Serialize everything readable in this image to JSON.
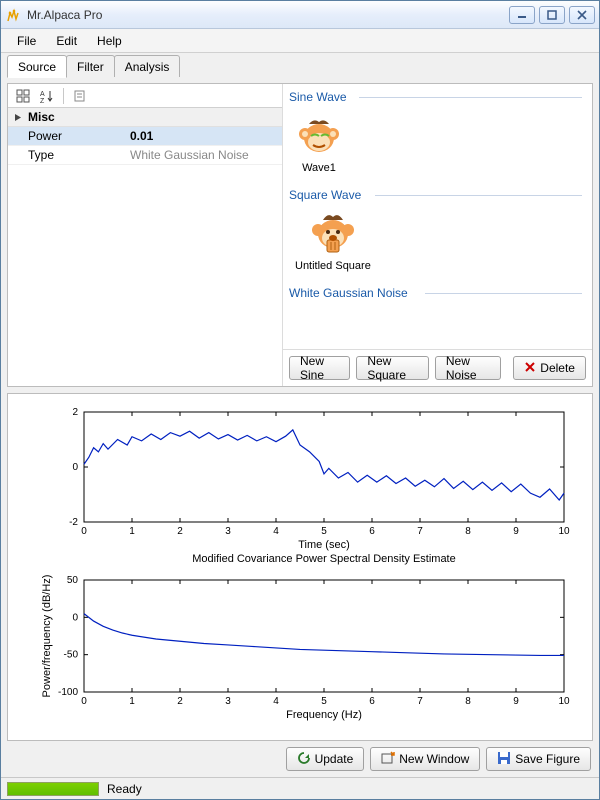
{
  "window": {
    "title": "Mr.Alpaca Pro"
  },
  "menu": {
    "file": "File",
    "edit": "Edit",
    "help": "Help"
  },
  "tabs": {
    "source": "Source",
    "filter": "Filter",
    "analysis": "Analysis"
  },
  "propgrid": {
    "category": "Misc",
    "rows": [
      {
        "k": "Power",
        "v": "0.01"
      },
      {
        "k": "Type",
        "v": "White Gaussian Noise"
      }
    ]
  },
  "groups": {
    "sine": {
      "title": "Sine Wave",
      "items": [
        "Wave1"
      ]
    },
    "square": {
      "title": "Square Wave",
      "items": [
        "Untitled Square"
      ]
    },
    "noise": {
      "title": "White Gaussian Noise",
      "items": []
    }
  },
  "buttons": {
    "new_sine": "New Sine",
    "new_square": "New Square",
    "new_noise": "New Noise",
    "delete": "Delete",
    "update": "Update",
    "new_window": "New Window",
    "save_figure": "Save Figure"
  },
  "status": {
    "text": "Ready",
    "progress_pct": 100
  },
  "colors": {
    "line": "#0020c0",
    "axis": "#000000",
    "bg": "#ffffff",
    "group_title": "#1a5aa8"
  },
  "chart_top": {
    "xlabel": "Time (sec)",
    "xlim": [
      0,
      10
    ],
    "xticks": [
      0,
      1,
      2,
      3,
      4,
      5,
      6,
      7,
      8,
      9,
      10
    ],
    "ylim": [
      -2,
      2
    ],
    "yticks": [
      -2,
      0,
      2
    ],
    "title_below": "Modified Covariance Power Spectral Density Estimate",
    "series": [
      [
        0.0,
        0.1
      ],
      [
        0.1,
        0.35
      ],
      [
        0.2,
        0.7
      ],
      [
        0.3,
        0.55
      ],
      [
        0.4,
        0.85
      ],
      [
        0.5,
        0.65
      ],
      [
        0.7,
        1.0
      ],
      [
        0.9,
        0.8
      ],
      [
        1.0,
        1.1
      ],
      [
        1.2,
        0.95
      ],
      [
        1.4,
        1.2
      ],
      [
        1.6,
        1.0
      ],
      [
        1.8,
        1.25
      ],
      [
        2.0,
        1.12
      ],
      [
        2.2,
        1.3
      ],
      [
        2.4,
        1.05
      ],
      [
        2.6,
        1.25
      ],
      [
        2.8,
        1.02
      ],
      [
        3.0,
        1.18
      ],
      [
        3.2,
        0.98
      ],
      [
        3.4,
        1.15
      ],
      [
        3.6,
        0.95
      ],
      [
        3.8,
        1.1
      ],
      [
        4.0,
        0.92
      ],
      [
        4.2,
        1.12
      ],
      [
        4.35,
        1.35
      ],
      [
        4.5,
        0.8
      ],
      [
        4.7,
        0.55
      ],
      [
        4.9,
        0.2
      ],
      [
        5.0,
        -0.25
      ],
      [
        5.1,
        -0.05
      ],
      [
        5.3,
        -0.4
      ],
      [
        5.5,
        -0.2
      ],
      [
        5.7,
        -0.55
      ],
      [
        5.9,
        -0.3
      ],
      [
        6.1,
        -0.55
      ],
      [
        6.3,
        -0.32
      ],
      [
        6.5,
        -0.6
      ],
      [
        6.7,
        -0.4
      ],
      [
        6.9,
        -0.7
      ],
      [
        7.1,
        -0.48
      ],
      [
        7.3,
        -0.72
      ],
      [
        7.5,
        -0.42
      ],
      [
        7.7,
        -0.78
      ],
      [
        7.9,
        -0.52
      ],
      [
        8.1,
        -0.82
      ],
      [
        8.3,
        -0.55
      ],
      [
        8.5,
        -0.85
      ],
      [
        8.7,
        -0.58
      ],
      [
        8.9,
        -0.9
      ],
      [
        9.1,
        -0.62
      ],
      [
        9.3,
        -0.95
      ],
      [
        9.5,
        -1.1
      ],
      [
        9.7,
        -0.8
      ],
      [
        9.9,
        -1.2
      ],
      [
        10.0,
        -0.95
      ]
    ]
  },
  "chart_bottom": {
    "xlabel": "Frequency (Hz)",
    "ylabel": "Power/frequency (dB/Hz)",
    "xlim": [
      0,
      10
    ],
    "xticks": [
      0,
      1,
      2,
      3,
      4,
      5,
      6,
      7,
      8,
      9,
      10
    ],
    "ylim": [
      -100,
      50
    ],
    "yticks": [
      -100,
      -50,
      0,
      50
    ],
    "series": [
      [
        0.0,
        5
      ],
      [
        0.2,
        -5
      ],
      [
        0.4,
        -12
      ],
      [
        0.6,
        -17
      ],
      [
        0.8,
        -21
      ],
      [
        1.0,
        -24
      ],
      [
        1.5,
        -29
      ],
      [
        2.0,
        -32
      ],
      [
        2.5,
        -35
      ],
      [
        3.0,
        -37
      ],
      [
        3.5,
        -39
      ],
      [
        4.0,
        -41
      ],
      [
        4.5,
        -43
      ],
      [
        5.0,
        -44
      ],
      [
        5.5,
        -45
      ],
      [
        6.0,
        -46
      ],
      [
        6.5,
        -47
      ],
      [
        7.0,
        -48
      ],
      [
        7.5,
        -49
      ],
      [
        8.0,
        -49.5
      ],
      [
        8.5,
        -50
      ],
      [
        9.0,
        -50.5
      ],
      [
        9.5,
        -51
      ],
      [
        10.0,
        -51
      ]
    ]
  }
}
